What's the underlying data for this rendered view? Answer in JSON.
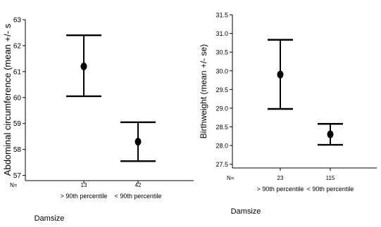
{
  "chart_data": [
    {
      "type": "errorbar",
      "title": "",
      "xlabel": "Damsize",
      "ylabel": "Abdominal circumference (mean +/- s",
      "ylim": [
        56.8,
        63
      ],
      "yticks": [
        57,
        58,
        59,
        60,
        61,
        62,
        63
      ],
      "n_label": "N=",
      "grid": false,
      "categories": [
        "> 90th percentile",
        "< 90th percentile"
      ],
      "n": [
        "13",
        "42"
      ],
      "mean": [
        61.2,
        58.3
      ],
      "lower": [
        60.05,
        57.55
      ],
      "upper": [
        62.4,
        59.05
      ]
    },
    {
      "type": "errorbar",
      "title": "",
      "xlabel": "Damsize",
      "ylabel": "Birthweight (mean +/- se)",
      "ylim": [
        27.4,
        31.5
      ],
      "yticks": [
        27.5,
        28.0,
        28.5,
        29.0,
        29.5,
        30.0,
        30.5,
        31.0,
        31.5
      ],
      "n_label": "N=",
      "grid": false,
      "categories": [
        "> 90th percentile",
        "< 90th percentile"
      ],
      "n": [
        "23",
        "115"
      ],
      "mean": [
        29.9,
        28.3
      ],
      "lower": [
        28.98,
        28.02
      ],
      "upper": [
        30.83,
        28.58
      ]
    }
  ],
  "colors": {
    "ink": "#000000",
    "background": "#ffffff"
  }
}
